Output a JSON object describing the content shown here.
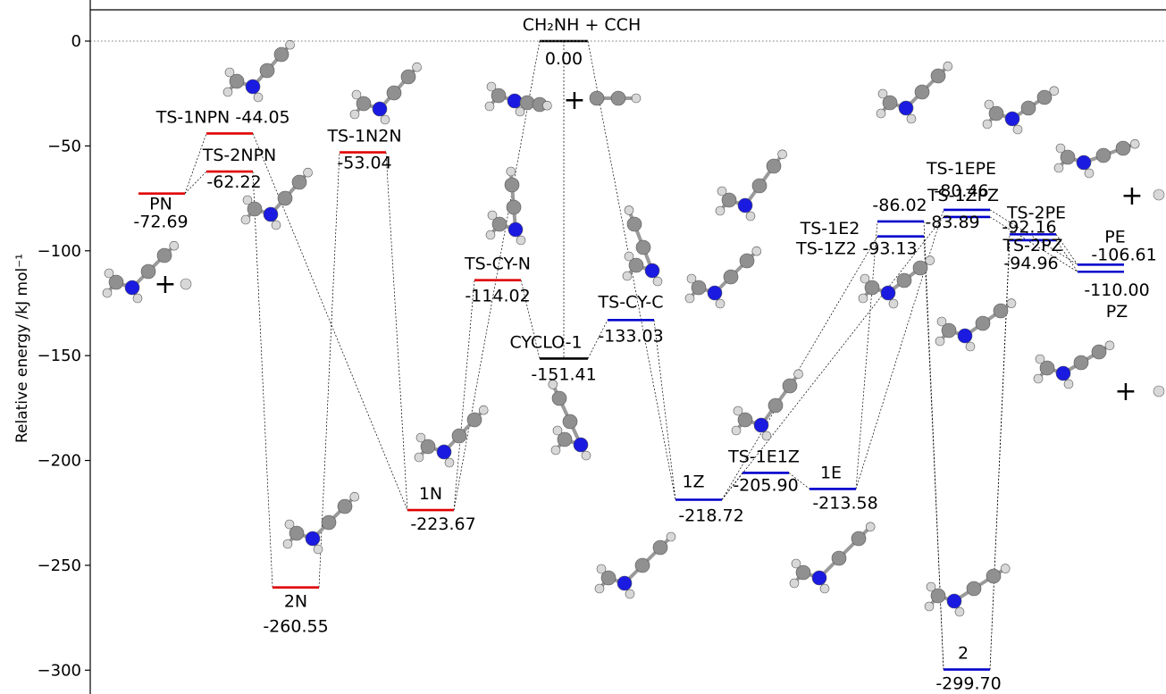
{
  "chart_data": {
    "type": "energy-level-diagram",
    "ylabel": "Relative energy /kJ mol⁻¹",
    "ylim": [
      -308,
      15
    ],
    "yticks": [
      0,
      -50,
      -100,
      -150,
      -200,
      -250,
      -300
    ],
    "reference_line": {
      "value": 0,
      "style": "dotted"
    },
    "colors": {
      "zero": "#000000",
      "N": "#e00000",
      "C": "#0000cc",
      "atom_N": "#1a1ae0",
      "atom_C": "#909090",
      "atom_H": "#d8d8d8"
    },
    "levels": [
      {
        "id": "PN",
        "name": "PN",
        "energy": -72.69,
        "value_text": "-72.69",
        "color": "N"
      },
      {
        "id": "TS1NPN",
        "name": "TS-1NPN",
        "energy": -44.05,
        "value_text": "-44.05",
        "color": "N"
      },
      {
        "id": "TS2NPN",
        "name": "TS-2NPN",
        "energy": -62.22,
        "value_text": "-62.22",
        "color": "N"
      },
      {
        "id": "N2",
        "name": "2N",
        "energy": -260.55,
        "value_text": "-260.55",
        "color": "N"
      },
      {
        "id": "TS1N2N",
        "name": "TS-1N2N",
        "energy": -53.04,
        "value_text": "-53.04",
        "color": "N"
      },
      {
        "id": "N1",
        "name": "1N",
        "energy": -223.67,
        "value_text": "-223.67",
        "color": "N"
      },
      {
        "id": "TSCYN",
        "name": "TS-CY-N",
        "energy": -114.02,
        "value_text": "-114.02",
        "color": "N"
      },
      {
        "id": "R",
        "name": "CH₂NH + CCH",
        "energy": 0.0,
        "value_text": "0.00",
        "color": "zero"
      },
      {
        "id": "CYCLO1",
        "name": "CYCLO-1",
        "energy": -151.41,
        "value_text": "-151.41",
        "color": "zero"
      },
      {
        "id": "TSCYC",
        "name": "TS-CY-C",
        "energy": -133.03,
        "value_text": "-133.03",
        "color": "C"
      },
      {
        "id": "Z1",
        "name": "1Z",
        "energy": -218.72,
        "value_text": "-218.72",
        "color": "C"
      },
      {
        "id": "TS1E1Z",
        "name": "TS-1E1Z",
        "energy": -205.9,
        "value_text": "-205.90",
        "color": "C"
      },
      {
        "id": "E1",
        "name": "1E",
        "energy": -213.58,
        "value_text": "-213.58",
        "color": "C"
      },
      {
        "id": "TS1E2",
        "name": "TS-1E2",
        "energy": -86.02,
        "value_text": "-86.02",
        "color": "C"
      },
      {
        "id": "TS1Z2",
        "name": "TS-1Z2",
        "energy": -93.13,
        "value_text": "-93.13",
        "color": "C"
      },
      {
        "id": "P2",
        "name": "2",
        "energy": -299.7,
        "value_text": "-299.70",
        "color": "C"
      },
      {
        "id": "TS1EPE",
        "name": "TS-1EPE",
        "energy": -80.46,
        "value_text": "-80.46",
        "color": "C"
      },
      {
        "id": "TS1ZPZ",
        "name": "TS-1ZPZ",
        "energy": -83.89,
        "value_text": "-83.89",
        "color": "C"
      },
      {
        "id": "TS2PE",
        "name": "TS-2PE",
        "energy": -92.16,
        "value_text": "-92.16",
        "color": "C"
      },
      {
        "id": "TS2PZ",
        "name": "TS-2PZ",
        "energy": -94.96,
        "value_text": "-94.96",
        "color": "C"
      },
      {
        "id": "PE",
        "name": "PE",
        "energy": -106.61,
        "value_text": "-106.61",
        "color": "C"
      },
      {
        "id": "PZ",
        "name": "PZ",
        "energy": -110.0,
        "value_text": "-110.00",
        "color": "C"
      }
    ],
    "connections": [
      [
        "PN",
        "TS1NPN"
      ],
      [
        "PN",
        "TS2NPN"
      ],
      [
        "TS1NPN",
        "N1"
      ],
      [
        "TS2NPN",
        "N2"
      ],
      [
        "N2",
        "TS1N2N"
      ],
      [
        "TS1N2N",
        "N1"
      ],
      [
        "N1",
        "TSCYN"
      ],
      [
        "TSCYN",
        "CYCLO1"
      ],
      [
        "N1",
        "R"
      ],
      [
        "R",
        "CYCLO1"
      ],
      [
        "R",
        "Z1"
      ],
      [
        "CYCLO1",
        "TSCYC"
      ],
      [
        "TSCYC",
        "Z1"
      ],
      [
        "Z1",
        "TS1E1Z"
      ],
      [
        "TS1E1Z",
        "E1"
      ],
      [
        "Z1",
        "TS1ZPZ"
      ],
      [
        "Z1",
        "TS1Z2"
      ],
      [
        "E1",
        "TS1E2"
      ],
      [
        "E1",
        "TS1EPE"
      ],
      [
        "TS1E2",
        "P2"
      ],
      [
        "TS1Z2",
        "P2"
      ],
      [
        "P2",
        "TS2PE"
      ],
      [
        "P2",
        "TS2PZ"
      ],
      [
        "TS1EPE",
        "PE"
      ],
      [
        "TS1ZPZ",
        "PZ"
      ],
      [
        "TS2PE",
        "PE"
      ],
      [
        "TS2PZ",
        "PZ"
      ]
    ],
    "plus_signs": [
      "+",
      "+",
      "+",
      "+"
    ]
  }
}
